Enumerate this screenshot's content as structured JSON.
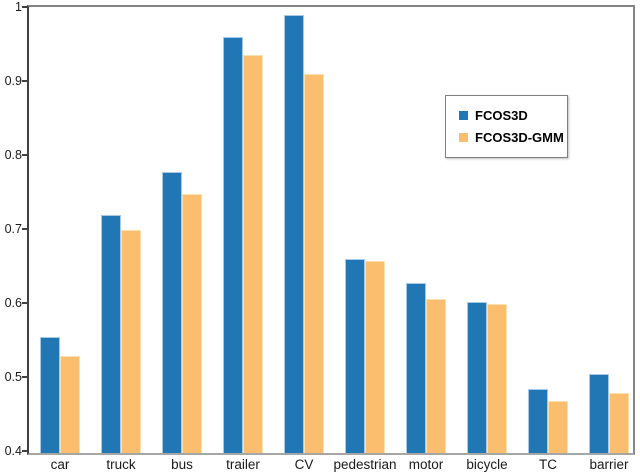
{
  "chart_data": {
    "type": "bar",
    "title": "",
    "xlabel": "",
    "ylabel": "",
    "categories": [
      "car",
      "truck",
      "bus",
      "trailer",
      "CV",
      "pedestrian",
      "motor",
      "bicycle",
      "TC",
      "barrier"
    ],
    "series": [
      {
        "name": "FCOS3D",
        "color": "#2176b4",
        "values": [
          0.557,
          0.722,
          0.78,
          0.962,
          0.992,
          0.662,
          0.63,
          0.604,
          0.487,
          0.507
        ]
      },
      {
        "name": "FCOS3D-GMM",
        "color": "#fbbe6e",
        "values": [
          0.531,
          0.702,
          0.75,
          0.938,
          0.912,
          0.66,
          0.608,
          0.601,
          0.47,
          0.481
        ]
      }
    ],
    "ylim": [
      0.4,
      1.0
    ],
    "yticks": [
      {
        "label": "1",
        "value": 1.0
      },
      {
        "label": "0.9",
        "value": 0.9
      },
      {
        "label": "0.8",
        "value": 0.8
      },
      {
        "label": "0.7",
        "value": 0.7
      },
      {
        "label": "0.6",
        "value": 0.6
      },
      {
        "label": "0.5",
        "value": 0.5
      },
      {
        "label": "0.4",
        "value": 0.4
      }
    ],
    "grid": false,
    "legend_position": "upper-right-inside",
    "legend_labels": [
      "FCOS3D",
      "FCOS3D-GMM"
    ]
  }
}
